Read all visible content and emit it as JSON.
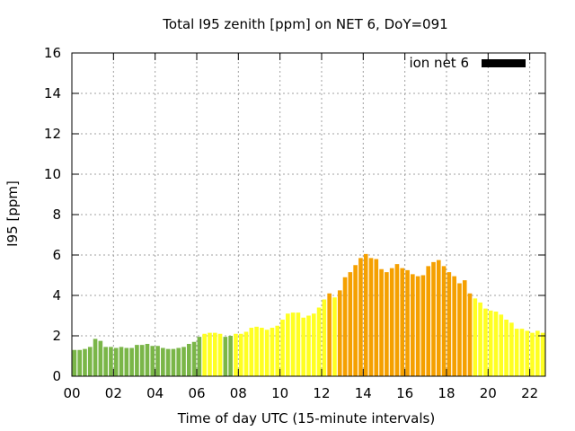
{
  "chart_data": {
    "type": "bar",
    "title": "Total I95 zenith [ppm] on NET 6, DoY=091",
    "xlabel": "Time of day UTC (15-minute intervals)",
    "ylabel": "I95 [ppm]",
    "ylim": [
      0,
      16
    ],
    "xlim": [
      0,
      22.75
    ],
    "yticks": [
      "0",
      "2",
      "4",
      "6",
      "8",
      "10",
      "12",
      "14",
      "16"
    ],
    "xticks": [
      "00",
      "02",
      "04",
      "06",
      "08",
      "10",
      "12",
      "14",
      "16",
      "18",
      "20",
      "22"
    ],
    "grid": true,
    "legend": {
      "label": "ion net 6",
      "placement": "top-right",
      "color": "#000000"
    },
    "colors": {
      "low": "#7ab648",
      "moderate": "#ffff22",
      "high": "#f5a000"
    },
    "series": [
      {
        "name": "ion net 6",
        "interval_hours": 0.25,
        "values": [
          1.3,
          1.3,
          1.35,
          1.45,
          1.85,
          1.75,
          1.45,
          1.45,
          1.4,
          1.45,
          1.4,
          1.4,
          1.55,
          1.55,
          1.6,
          1.5,
          1.5,
          1.4,
          1.35,
          1.35,
          1.4,
          1.45,
          1.6,
          1.7,
          1.95,
          2.1,
          2.15,
          2.15,
          2.1,
          1.95,
          2.0,
          2.1,
          2.1,
          2.2,
          2.4,
          2.45,
          2.4,
          2.3,
          2.4,
          2.5,
          2.8,
          3.1,
          3.15,
          3.15,
          2.9,
          3.0,
          3.1,
          3.4,
          3.8,
          4.1,
          3.9,
          4.25,
          4.9,
          5.15,
          5.5,
          5.85,
          6.05,
          5.85,
          5.8,
          5.3,
          5.15,
          5.35,
          5.55,
          5.35,
          5.25,
          5.05,
          4.95,
          5.0,
          5.45,
          5.65,
          5.75,
          5.45,
          5.15,
          4.95,
          4.6,
          4.75,
          4.1,
          3.85,
          3.65,
          3.35,
          3.25,
          3.2,
          3.05,
          2.8,
          2.65,
          2.35,
          2.35,
          2.25,
          2.15,
          2.25,
          2.15
        ],
        "categories": [
          "low",
          "low",
          "low",
          "low",
          "low",
          "low",
          "low",
          "low",
          "low",
          "low",
          "low",
          "low",
          "low",
          "low",
          "low",
          "low",
          "low",
          "low",
          "low",
          "low",
          "low",
          "low",
          "low",
          "low",
          "low",
          "moderate",
          "moderate",
          "moderate",
          "moderate",
          "low",
          "low",
          "moderate",
          "moderate",
          "moderate",
          "moderate",
          "moderate",
          "moderate",
          "moderate",
          "moderate",
          "moderate",
          "moderate",
          "moderate",
          "moderate",
          "moderate",
          "moderate",
          "moderate",
          "moderate",
          "moderate",
          "moderate",
          "high",
          "moderate",
          "high",
          "high",
          "high",
          "high",
          "high",
          "high",
          "high",
          "high",
          "high",
          "high",
          "high",
          "high",
          "high",
          "high",
          "high",
          "high",
          "high",
          "high",
          "high",
          "high",
          "high",
          "high",
          "high",
          "high",
          "high",
          "high",
          "moderate",
          "moderate",
          "moderate",
          "moderate",
          "moderate",
          "moderate",
          "moderate",
          "moderate",
          "moderate",
          "moderate",
          "moderate",
          "moderate",
          "moderate",
          "moderate"
        ]
      }
    ]
  }
}
